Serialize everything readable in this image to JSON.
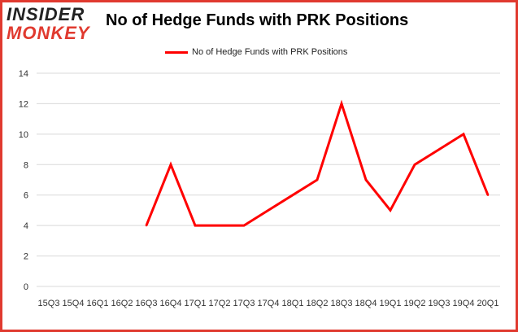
{
  "logo": {
    "line1": "INSIDER",
    "line2": "MONKEY"
  },
  "chart_data": {
    "type": "line",
    "title": "No of Hedge Funds with PRK Positions",
    "categories": [
      "15Q3",
      "15Q4",
      "16Q1",
      "16Q2",
      "16Q3",
      "16Q4",
      "17Q1",
      "17Q2",
      "17Q3",
      "17Q4",
      "18Q1",
      "18Q2",
      "18Q3",
      "18Q4",
      "19Q1",
      "19Q2",
      "19Q3",
      "19Q4",
      "20Q1"
    ],
    "series": [
      {
        "name": "No of Hedge Funds with PRK Positions",
        "values": [
          null,
          null,
          null,
          null,
          4,
          8,
          4,
          4,
          4,
          5,
          6,
          7,
          12,
          7,
          5,
          8,
          9,
          10,
          6
        ]
      }
    ],
    "ylim": [
      0,
      14
    ],
    "yticks": [
      0,
      2,
      4,
      6,
      8,
      10,
      12,
      14
    ],
    "grid": true,
    "legend_position": "top",
    "color": "#ff0000"
  }
}
